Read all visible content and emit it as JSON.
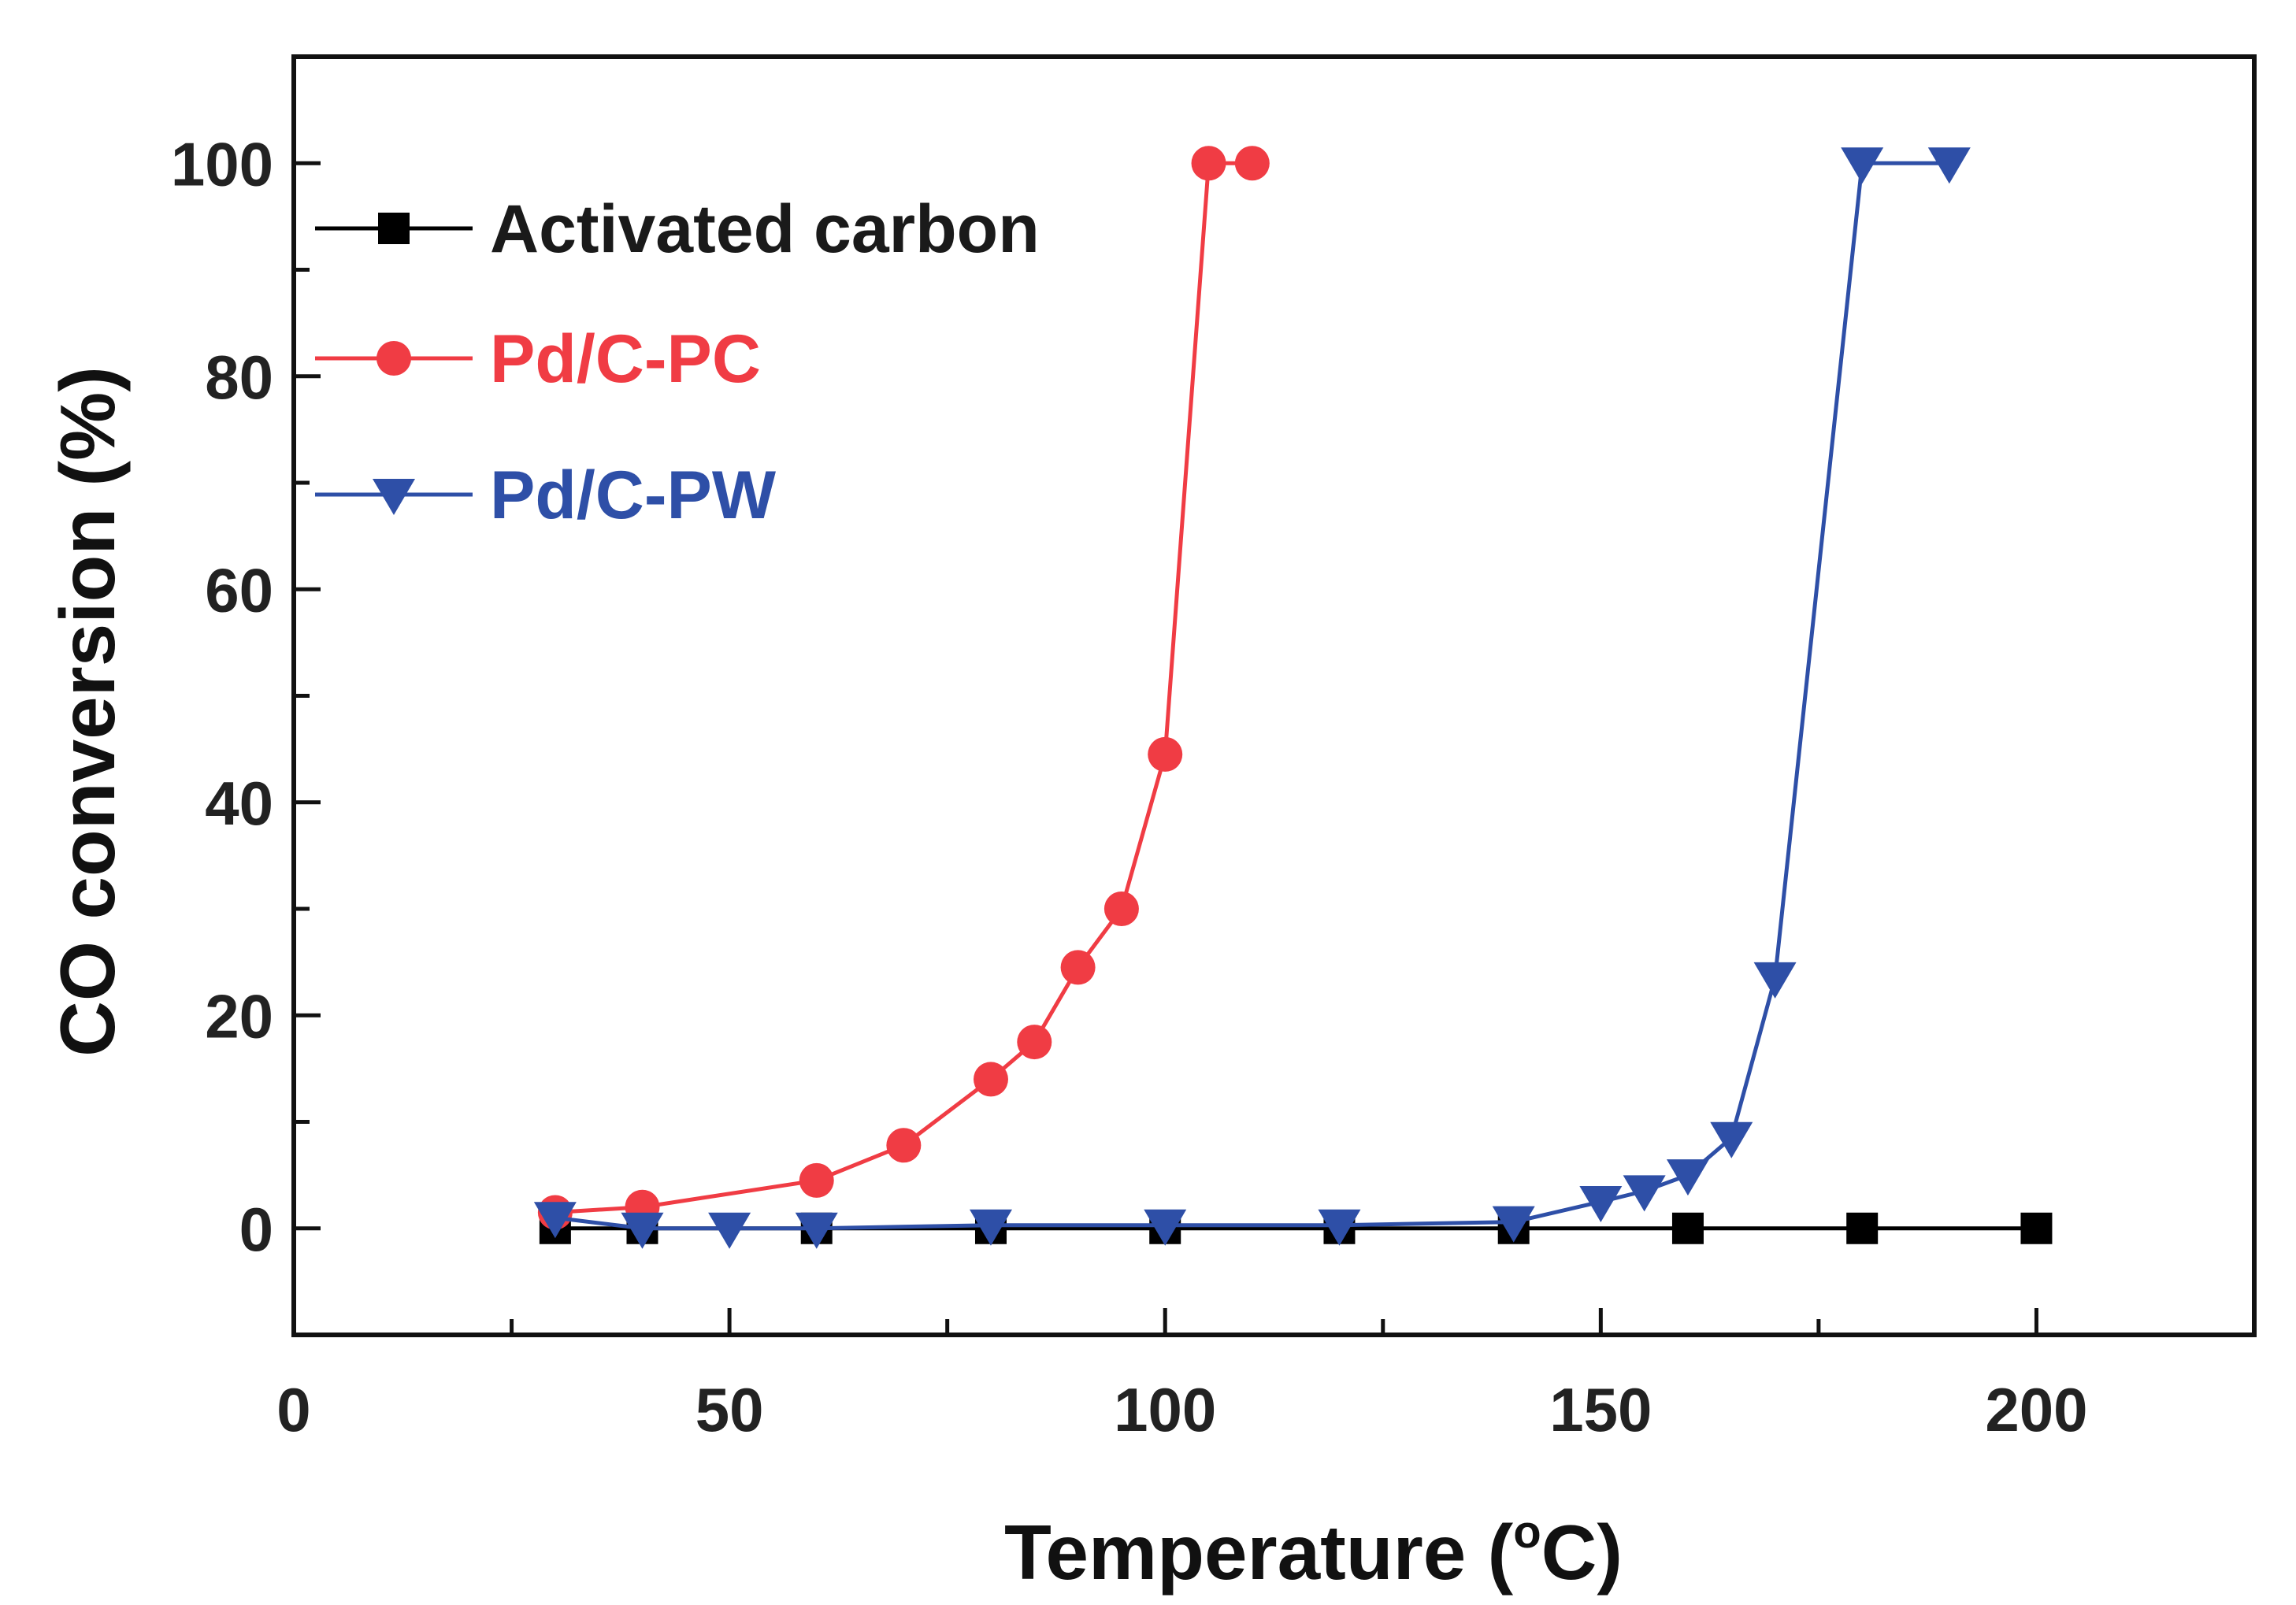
{
  "chart_data": {
    "type": "line",
    "title": "",
    "xlabel": "Temperature (°C)",
    "xlabel_base": "Temperature (",
    "xlabel_degree": "o",
    "xlabel_unit": "C)",
    "ylabel": "CO conversion (%)",
    "xlim": [
      0,
      225
    ],
    "ylim": [
      -10,
      110
    ],
    "xticks": [
      0,
      50,
      100,
      150,
      200
    ],
    "yticks": [
      0,
      20,
      40,
      60,
      80,
      100
    ],
    "legend_position": "top-left",
    "grid": false,
    "series": [
      {
        "name": "Activated carbon",
        "color": "#000000",
        "marker": "square",
        "x": [
          30,
          40,
          60,
          80,
          100,
          120,
          140,
          160,
          180,
          200
        ],
        "y": [
          0,
          0,
          0,
          0,
          0,
          0,
          0,
          0,
          0,
          0
        ]
      },
      {
        "name": "Pd/C-PC",
        "color": "#f03c44",
        "marker": "circle",
        "x": [
          30,
          40,
          60,
          70,
          80,
          85,
          90,
          95,
          100,
          105,
          110
        ],
        "y": [
          1.5,
          2,
          4.5,
          7.8,
          14,
          17.5,
          24.5,
          30,
          44.5,
          100,
          100
        ]
      },
      {
        "name": "Pd/C-PW",
        "color": "#2e4fa7",
        "marker": "triangle-down",
        "x": [
          30,
          40,
          50,
          60,
          80,
          100,
          120,
          140,
          150,
          155,
          160,
          165,
          170,
          180,
          190
        ],
        "y": [
          1,
          0,
          0,
          0,
          0.3,
          0.3,
          0.3,
          0.6,
          2.5,
          3.5,
          5,
          8.5,
          23.5,
          100,
          100
        ]
      }
    ]
  }
}
